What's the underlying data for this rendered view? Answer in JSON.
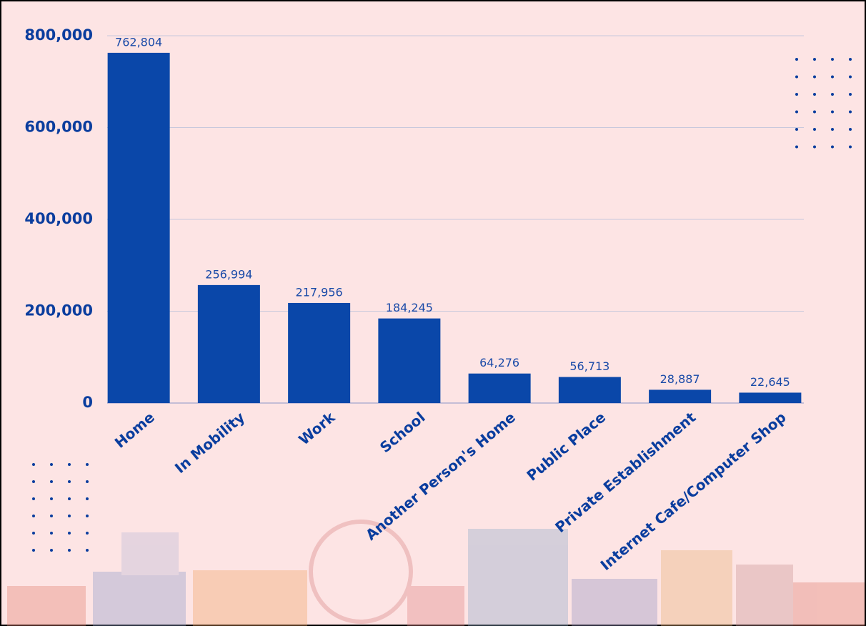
{
  "chart_data": {
    "type": "bar",
    "categories": [
      "Home",
      "In Mobility",
      "Work",
      "School",
      "Another Person's Home",
      "Public Place",
      "Private Establishment",
      "Internet Cafe/Computer Shop"
    ],
    "values": [
      762804,
      256994,
      217956,
      184245,
      64276,
      56713,
      28887,
      22645
    ],
    "value_labels": [
      "762,804",
      "256,994",
      "217,956",
      "184,245",
      "64,276",
      "56,713",
      "28,887",
      "22,645"
    ],
    "color": "#0a47a9",
    "ylim": [
      0,
      800000
    ],
    "yticks": [
      0,
      {
        "value": 200000,
        "label": "200,000"
      },
      {
        "value": 400000,
        "label": "400,000"
      },
      {
        "value": 600000,
        "label": "600,000"
      },
      {
        "value": 800000,
        "label": "800,000"
      }
    ],
    "grid": true
  }
}
